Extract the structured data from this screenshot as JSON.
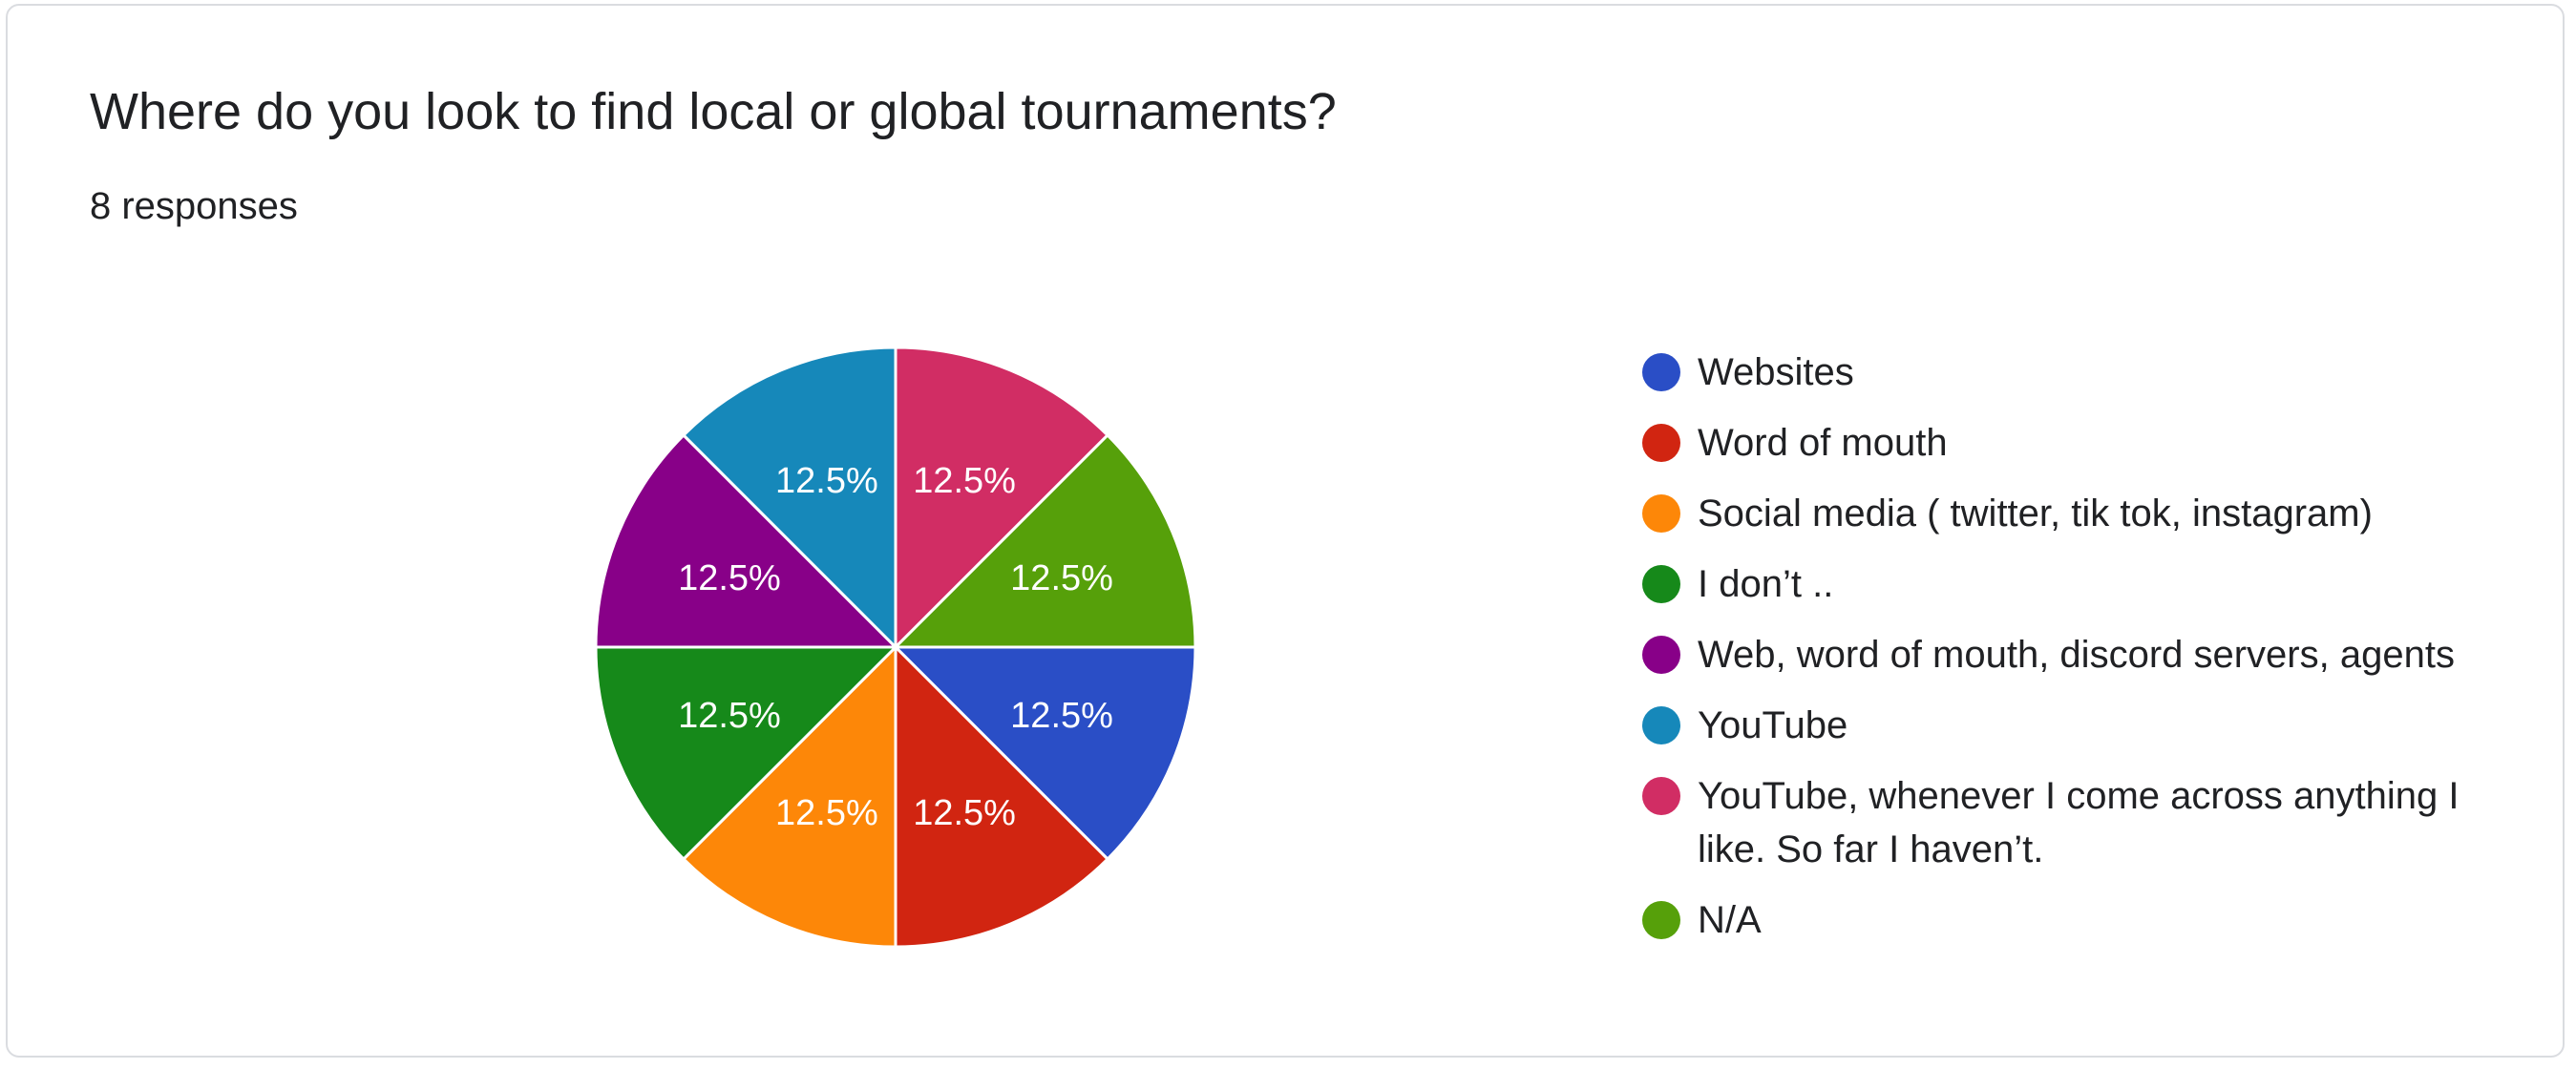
{
  "question": {
    "title": "Where do you look to find local or global tournaments?",
    "responses": "8 responses"
  },
  "chart_data": {
    "type": "pie",
    "categories": [
      "Websites",
      "Word of mouth",
      "Social media ( twitter, tik tok, instagram)",
      "I don’t ..",
      "Web, word of mouth, discord servers, agents",
      "YouTube",
      "YouTube, whenever I come across anything I like. So far I haven’t.",
      "N/A"
    ],
    "values": [
      1,
      1,
      1,
      1,
      1,
      1,
      1,
      1
    ],
    "labels": [
      "12.5%",
      "12.5%",
      "12.5%",
      "12.5%",
      "12.5%",
      "12.5%",
      "12.5%",
      "12.5%"
    ],
    "colors": [
      "#2a4ec6",
      "#d12511",
      "#fd8708",
      "#16891a",
      "#880088",
      "#1688ba",
      "#d12d64",
      "#56a00a"
    ],
    "legend_position": "right"
  }
}
